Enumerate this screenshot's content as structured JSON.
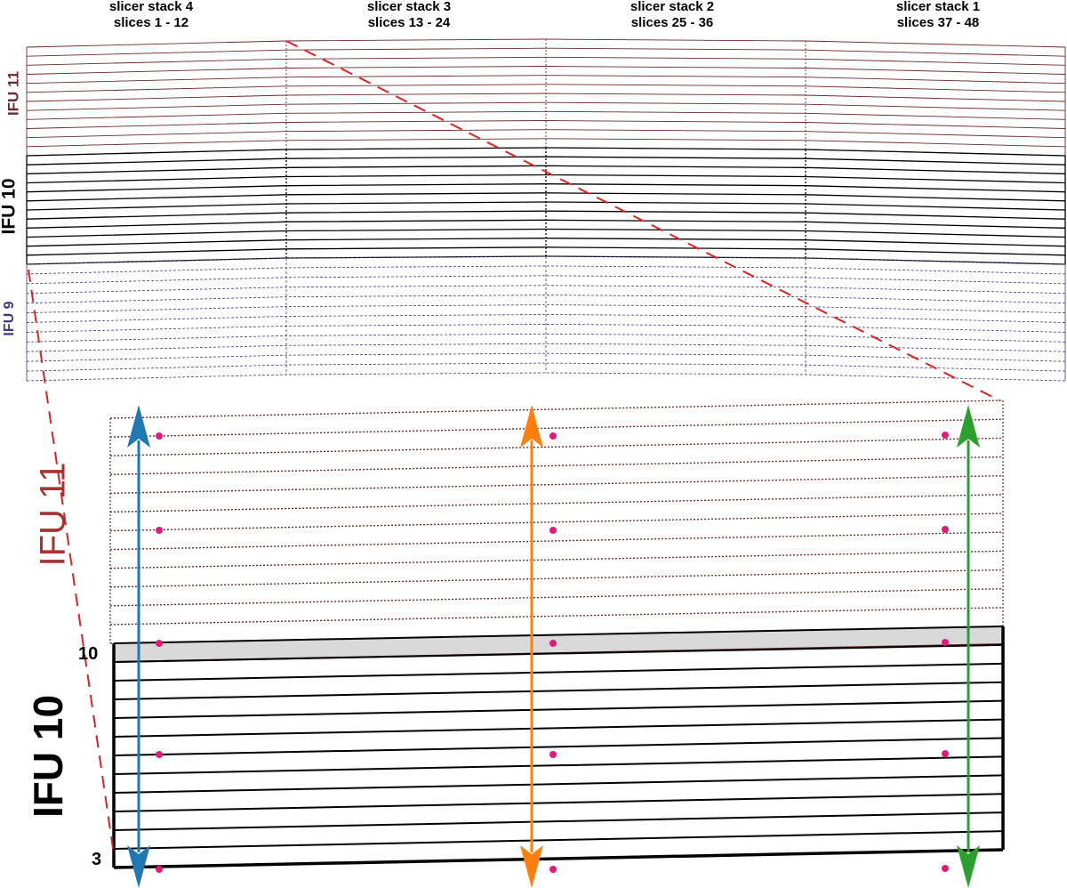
{
  "slicer_stacks": [
    {
      "name": "slicer stack 4",
      "slices": "slices 1 - 12"
    },
    {
      "name": "slicer stack 3",
      "slices": "slices 13 - 24"
    },
    {
      "name": "slicer stack 2",
      "slices": "slices 25 - 36"
    },
    {
      "name": "slicer stack 1",
      "slices": "slices 37 - 48"
    }
  ],
  "ifu_labels": {
    "top_ifu11": "IFU 11",
    "top_ifu10": "IFU 10",
    "top_ifu9": "IFU 9",
    "zoom_ifu11": "IFU 11",
    "zoom_ifu10": "IFU 10"
  },
  "row_markers": {
    "top": "10",
    "bottom": "3"
  },
  "colors": {
    "ifu11": "#6b2a2a",
    "ifu10": "#000000",
    "ifu9": "#3a3a7a",
    "zoom_ifu11_text": "#a83232",
    "guide_dashes": "#e02020",
    "arrow_left": "#1f77b4",
    "arrow_middle": "#ff7f0e",
    "arrow_right": "#2ca02c",
    "points": "#e6197a",
    "overlap_fill": "#d9d9d9"
  }
}
